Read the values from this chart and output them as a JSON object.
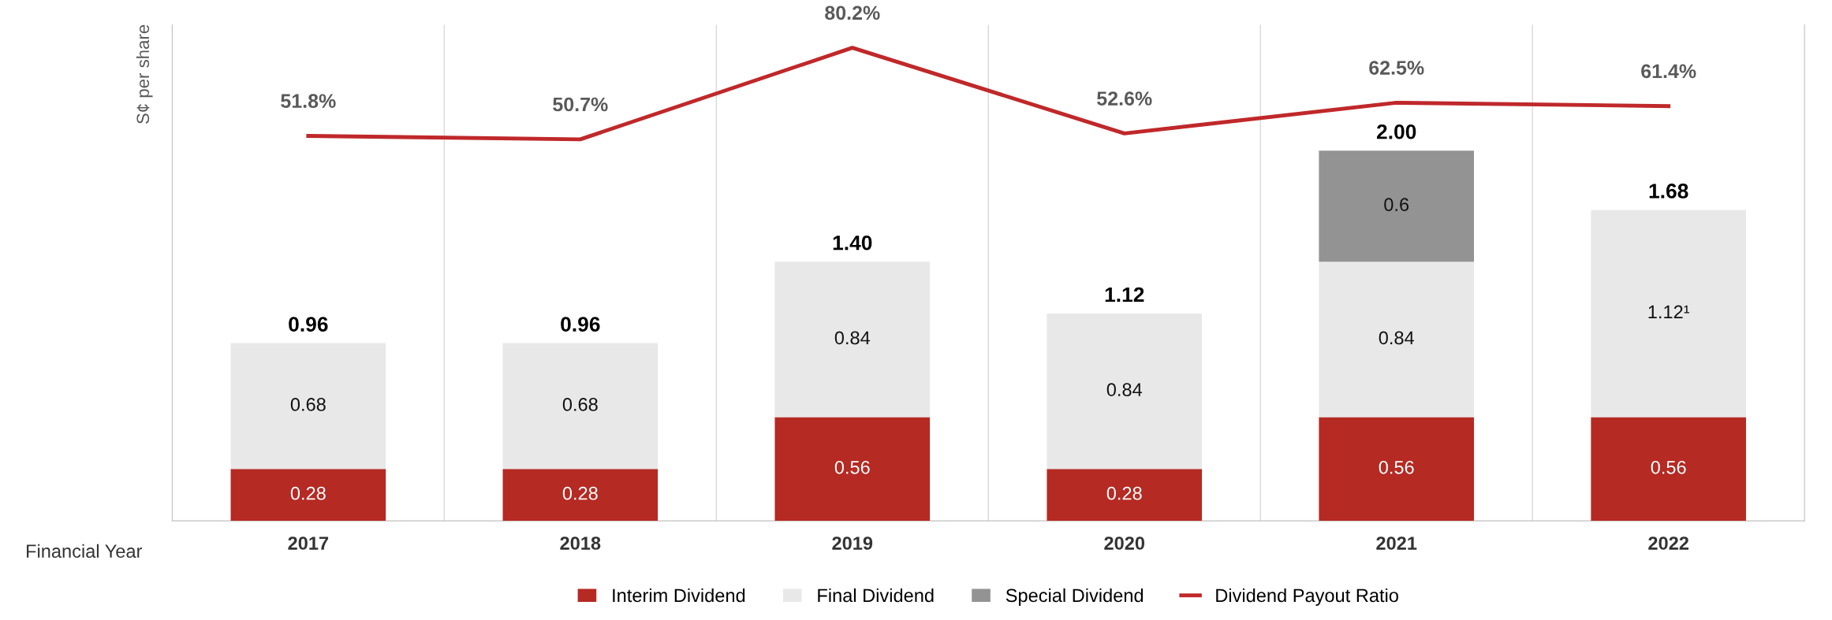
{
  "chart_data": {
    "type": "bar",
    "stacked": true,
    "categories": [
      "2017",
      "2018",
      "2019",
      "2020",
      "2021",
      "2022"
    ],
    "xlabel": "Financial Year",
    "ylabel": "S¢ per share",
    "ylim": [
      0,
      2.68
    ],
    "y2lim": [
      -72.2,
      87.6
    ],
    "tick_labels": "x",
    "series": [
      {
        "name": "Interim Dividend",
        "color": "#b52a23",
        "values": [
          0.28,
          0.28,
          0.56,
          0.28,
          0.56,
          0.56
        ]
      },
      {
        "name": "Final Dividend",
        "color": "#e8e8e8",
        "values": [
          0.68,
          0.68,
          0.84,
          0.84,
          0.84,
          1.12
        ],
        "value_labels": [
          "0.68",
          "0.68",
          "0.84",
          "0.84",
          "0.84",
          "1.12¹"
        ]
      },
      {
        "name": "Special Dividend",
        "color": "#939393",
        "values": [
          null,
          null,
          null,
          null,
          0.6,
          null
        ]
      },
      {
        "name": "Dividend Payout Ratio",
        "type": "line",
        "axis": "y2",
        "color": "#c0282a",
        "values": [
          51.8,
          50.7,
          80.2,
          52.6,
          62.5,
          61.4
        ],
        "value_labels": [
          "51.8%",
          "50.7%",
          "80.2%",
          "52.6%",
          "62.5%",
          "61.4%"
        ]
      }
    ],
    "data_labels": true,
    "totals": [
      "0.96",
      "0.96",
      "1.40",
      "1.12",
      "2.00",
      "1.68"
    ],
    "grid": "x",
    "legend": "bottom",
    "marker": "none",
    "line_style": "solid"
  }
}
